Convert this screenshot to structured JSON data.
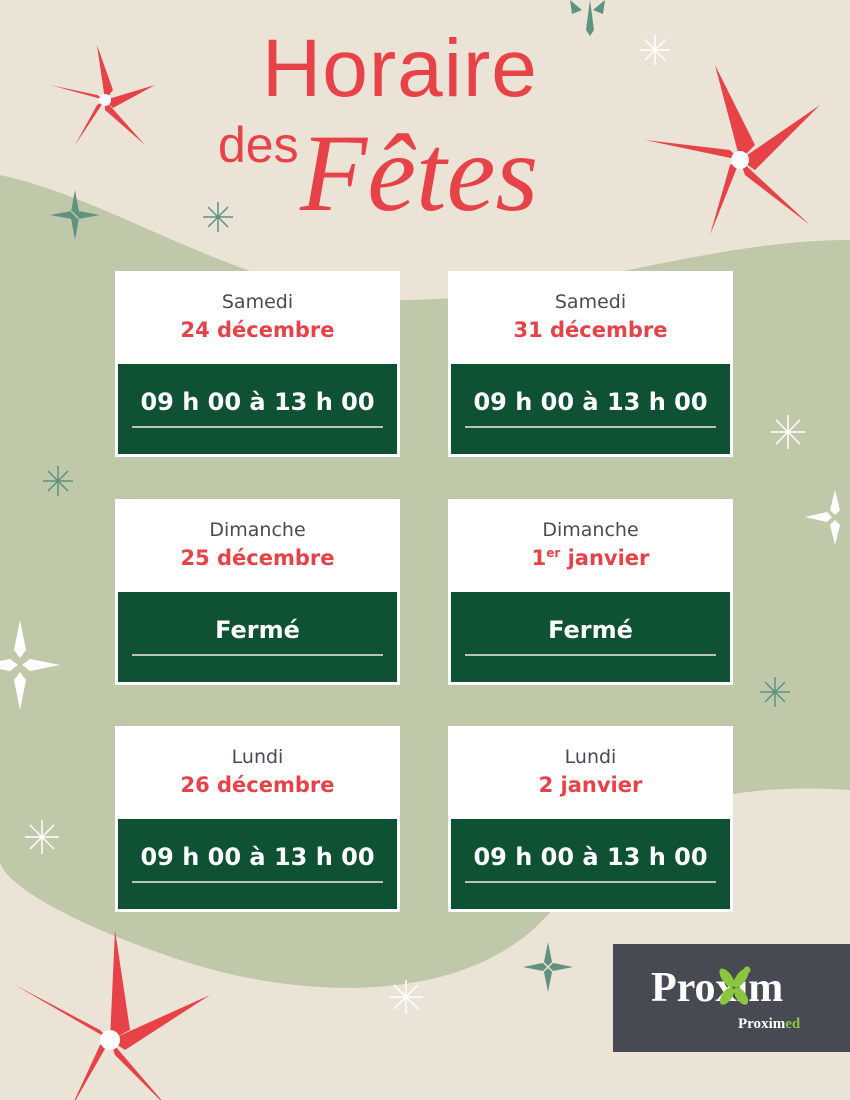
{
  "colors": {
    "background": "#ebe4d6",
    "green_area": "#bfc8a8",
    "accent_red": "#e84249",
    "hours_green": "#0f5133",
    "logo_bg": "#474a52",
    "logo_green": "#8cc63f"
  },
  "title": {
    "line1": "Horaire",
    "line2": "des",
    "line3": "Fêtes"
  },
  "cards": [
    {
      "day": "Samedi",
      "date": "24 décembre",
      "date_sup": "",
      "hours": "09 h 00 à 13 h 00"
    },
    {
      "day": "Samedi",
      "date": "31 décembre",
      "date_sup": "",
      "hours": "09 h 00 à 13 h 00"
    },
    {
      "day": "Dimanche",
      "date": "25 décembre",
      "date_sup": "",
      "hours": "Fermé"
    },
    {
      "day": "Dimanche",
      "date_prefix": "1",
      "date_sup": "er",
      "date": " janvier",
      "hours": "Fermé"
    },
    {
      "day": "Lundi",
      "date": "26 décembre",
      "date_sup": "",
      "hours": "09 h 00 à 13 h 00"
    },
    {
      "day": "Lundi",
      "date": "2 janvier",
      "date_sup": "",
      "hours": "09 h 00 à 13 h 00"
    }
  ],
  "logo": {
    "main": "Proxim",
    "sub_a": "Pro",
    "sub_b": "xim",
    "sub_c": "ed",
    "icons": [
      "poinsettia-icon",
      "snowflake-icon",
      "sparkle-icon"
    ]
  }
}
